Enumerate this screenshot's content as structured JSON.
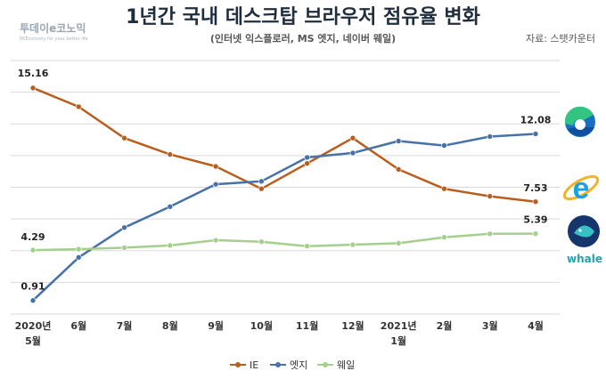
{
  "header": {
    "logo_text": "투데이e코노믹",
    "logo_tagline": "EKEconomy for your better life",
    "title": "1년간 국내 데스크탑 브라우저 점유율 변화",
    "subtitle": "(인터넷 익스플로러, MS 엣지, 네이버 웨일)",
    "source": "자료: 스탯카운터"
  },
  "brand_logos": {
    "edge": "edge-icon",
    "ie": "internet-explorer-icon",
    "whale": "whale-icon",
    "whale_label": "whale"
  },
  "chart_data": {
    "type": "line",
    "title": "1년간 국내 데스크탑 브라우저 점유율 변화",
    "subtitle": "(인터넷 익스플로러, MS 엣지, 네이버 웨일)",
    "categories": [
      [
        "2020년",
        "5월"
      ],
      [
        "6월"
      ],
      [
        "7월"
      ],
      [
        "8월"
      ],
      [
        "9월"
      ],
      [
        "10월"
      ],
      [
        "11월"
      ],
      [
        "12월"
      ],
      [
        "2021년",
        "1월"
      ],
      [
        "2월"
      ],
      [
        "3월"
      ],
      [
        "4월"
      ]
    ],
    "ylim": [
      0,
      17
    ],
    "grid": true,
    "legend": "bottom",
    "series": [
      {
        "name": "IE",
        "color": "#b85e1e",
        "values": [
          15.16,
          13.9,
          11.8,
          10.7,
          9.9,
          8.4,
          10.1,
          11.8,
          9.7,
          8.4,
          7.9,
          7.53
        ],
        "labels": [
          {
            "index": 0,
            "text": "15.16"
          },
          {
            "index": 11,
            "text": "7.53"
          }
        ]
      },
      {
        "name": "엣지",
        "color": "#4672a8",
        "values": [
          0.91,
          3.8,
          5.8,
          7.2,
          8.7,
          8.9,
          10.5,
          10.8,
          11.6,
          11.3,
          11.9,
          12.08
        ],
        "labels": [
          {
            "index": 0,
            "text": "0.91"
          },
          {
            "index": 11,
            "text": "12.08"
          }
        ]
      },
      {
        "name": "웨일",
        "color": "#a5cf8c",
        "values": [
          4.29,
          4.35,
          4.45,
          4.6,
          4.95,
          4.85,
          4.55,
          4.65,
          4.75,
          5.15,
          5.38,
          5.39
        ],
        "labels": [
          {
            "index": 0,
            "text": "4.29"
          },
          {
            "index": 11,
            "text": "5.39"
          }
        ]
      }
    ]
  }
}
